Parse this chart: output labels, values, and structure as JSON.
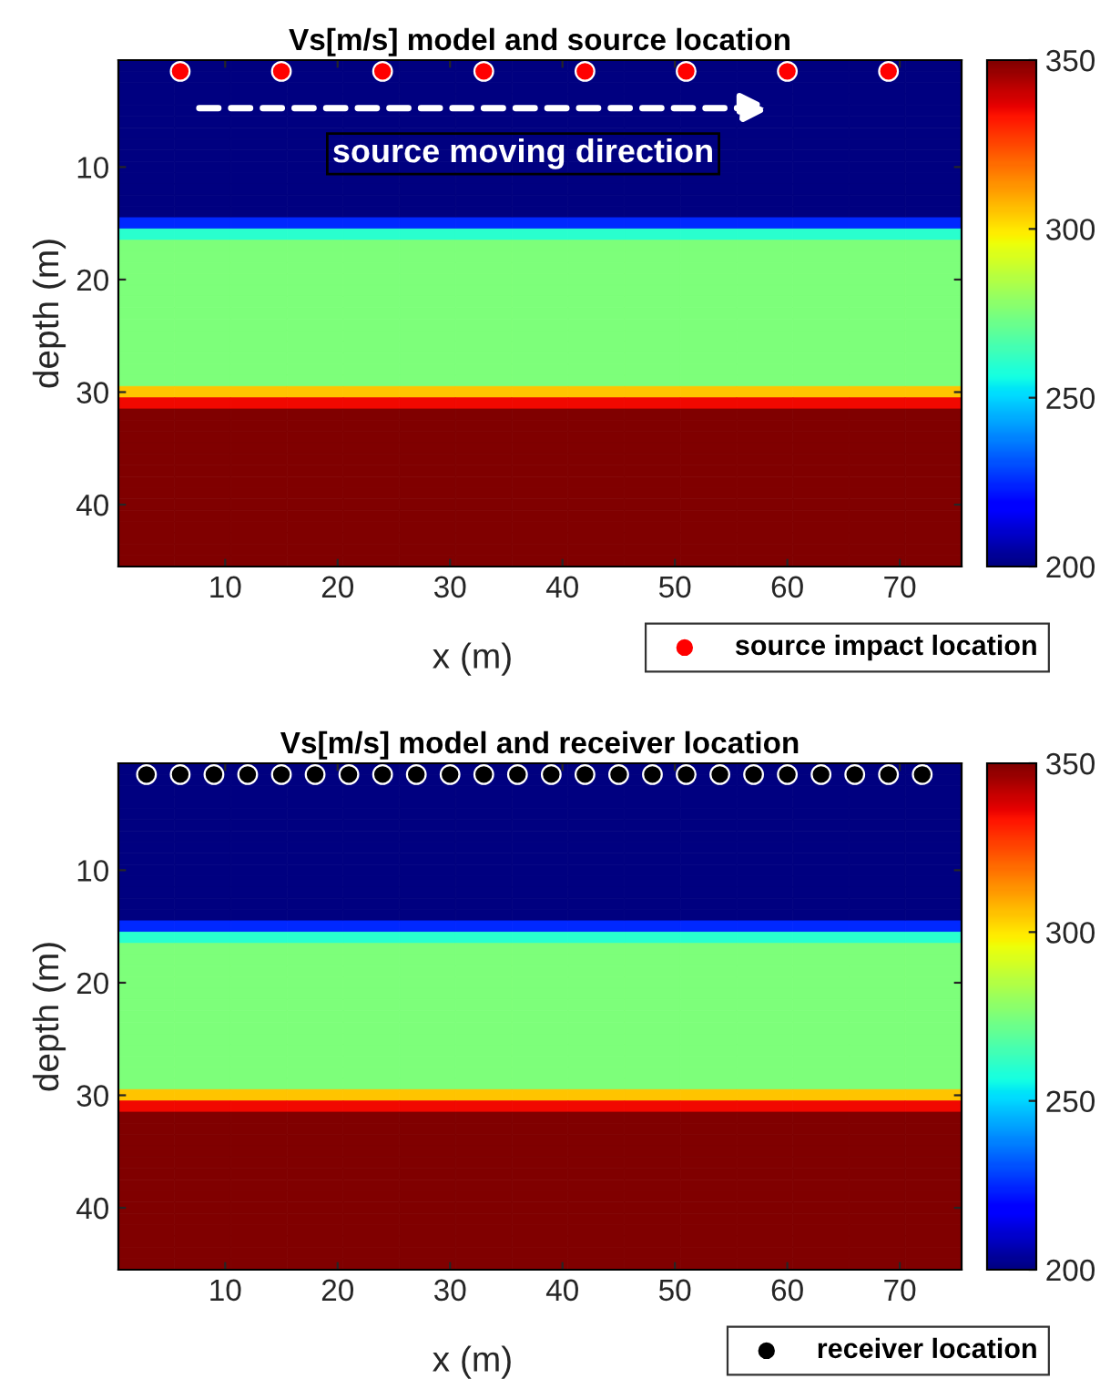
{
  "chart_data": [
    {
      "type": "heatmap",
      "title": "Vs[m/s] model and source location",
      "xlabel": "x (m)",
      "ylabel": "depth (m)",
      "xlim": [
        0.5,
        75.5
      ],
      "ylim": [
        45.5,
        0.5
      ],
      "xticks": [
        10,
        20,
        30,
        40,
        50,
        60,
        70
      ],
      "yticks": [
        10,
        20,
        30,
        40
      ],
      "clim": [
        200,
        350
      ],
      "cticks": [
        200,
        250,
        300,
        350
      ],
      "grid": false,
      "legend": "bottom right",
      "marker": "circle",
      "annotations": [
        "source moving direction"
      ],
      "cells": [
        [
          200,
          200,
          200,
          200,
          200,
          200,
          200,
          200,
          200,
          200,
          200,
          200,
          200,
          200,
          200
        ],
        [
          200,
          200,
          200,
          200,
          200,
          200,
          200,
          200,
          200,
          200,
          200,
          200,
          200,
          200,
          200
        ],
        [
          200,
          200,
          200,
          200,
          200,
          200,
          200,
          200,
          200,
          200,
          200,
          200,
          200,
          200,
          200
        ],
        [
          200,
          200,
          200,
          200,
          200,
          200,
          200,
          200,
          200,
          200,
          200,
          200,
          200,
          200,
          200
        ],
        [
          200,
          200,
          200,
          200,
          200,
          200,
          200,
          200,
          200,
          200,
          200,
          200,
          200,
          200,
          200
        ],
        [
          200,
          200,
          200,
          200,
          200,
          200,
          200,
          200,
          200,
          200,
          200,
          200,
          200,
          200,
          200
        ],
        [
          200,
          200,
          200,
          200,
          200,
          200,
          200,
          200,
          200,
          200,
          200,
          200,
          200,
          200,
          200
        ],
        [
          200,
          200,
          200,
          200,
          200,
          200,
          200,
          200,
          200,
          200,
          200,
          200,
          200,
          200,
          200
        ],
        [
          200,
          200,
          200,
          200,
          200,
          200,
          200,
          200,
          200,
          200,
          200,
          200,
          200,
          200,
          200
        ],
        [
          200,
          200,
          200,
          200,
          200,
          200,
          200,
          200,
          200,
          200,
          200,
          200,
          200,
          200,
          200
        ],
        [
          200,
          200,
          200,
          200,
          200,
          200,
          200,
          200,
          200,
          200,
          200,
          200,
          200,
          200,
          200
        ],
        [
          200,
          200,
          200,
          200,
          200,
          200,
          200,
          200,
          200,
          200,
          200,
          200,
          200,
          200,
          200
        ],
        [
          200,
          200,
          200,
          200,
          200,
          200,
          200,
          200,
          200,
          200,
          200,
          200,
          200,
          200,
          200
        ],
        [
          200,
          200,
          200,
          200,
          200,
          200,
          200,
          200,
          200,
          200,
          200,
          200,
          200,
          200,
          200
        ],
        [
          225,
          225,
          225,
          225,
          225,
          225,
          225,
          225,
          225,
          225,
          225,
          225,
          225,
          225,
          225
        ],
        [
          260,
          260,
          260,
          260,
          260,
          260,
          260,
          260,
          260,
          260,
          260,
          260,
          260,
          260,
          260
        ],
        [
          275,
          275,
          275,
          275,
          275,
          275,
          275,
          275,
          275,
          275,
          275,
          275,
          275,
          275,
          275
        ],
        [
          275,
          275,
          275,
          275,
          275,
          275,
          275,
          275,
          275,
          275,
          275,
          275,
          275,
          275,
          275
        ],
        [
          275,
          275,
          275,
          275,
          275,
          275,
          275,
          275,
          275,
          275,
          275,
          275,
          275,
          275,
          275
        ],
        [
          275,
          275,
          275,
          275,
          275,
          275,
          275,
          275,
          275,
          275,
          275,
          275,
          275,
          275,
          275
        ],
        [
          275,
          275,
          275,
          275,
          275,
          275,
          275,
          275,
          275,
          275,
          275,
          275,
          275,
          275,
          275
        ],
        [
          275,
          275,
          275,
          275,
          275,
          275,
          275,
          275,
          275,
          275,
          275,
          275,
          275,
          275,
          275
        ],
        [
          275,
          275,
          275,
          275,
          275,
          275,
          275,
          275,
          275,
          275,
          275,
          275,
          275,
          275,
          275
        ],
        [
          275,
          275,
          275,
          275,
          275,
          275,
          275,
          275,
          275,
          275,
          275,
          275,
          275,
          275,
          275
        ],
        [
          275,
          275,
          275,
          275,
          275,
          275,
          275,
          275,
          275,
          275,
          275,
          275,
          275,
          275,
          275
        ],
        [
          275,
          275,
          275,
          275,
          275,
          275,
          275,
          275,
          275,
          275,
          275,
          275,
          275,
          275,
          275
        ],
        [
          275,
          275,
          275,
          275,
          275,
          275,
          275,
          275,
          275,
          275,
          275,
          275,
          275,
          275,
          275
        ],
        [
          275,
          275,
          275,
          275,
          275,
          275,
          275,
          275,
          275,
          275,
          275,
          275,
          275,
          275,
          275
        ],
        [
          275,
          275,
          275,
          275,
          275,
          275,
          275,
          275,
          275,
          275,
          275,
          275,
          275,
          275,
          275
        ],
        [
          305,
          305,
          305,
          305,
          305,
          305,
          305,
          305,
          305,
          305,
          305,
          305,
          305,
          305,
          305
        ],
        [
          335,
          335,
          335,
          335,
          335,
          335,
          335,
          335,
          335,
          335,
          335,
          335,
          335,
          335,
          335
        ],
        [
          350,
          350,
          350,
          350,
          350,
          350,
          350,
          350,
          350,
          350,
          350,
          350,
          350,
          350,
          350
        ],
        [
          350,
          350,
          350,
          350,
          350,
          350,
          350,
          350,
          350,
          350,
          350,
          350,
          350,
          350,
          350
        ],
        [
          350,
          350,
          350,
          350,
          350,
          350,
          350,
          350,
          350,
          350,
          350,
          350,
          350,
          350,
          350
        ],
        [
          350,
          350,
          350,
          350,
          350,
          350,
          350,
          350,
          350,
          350,
          350,
          350,
          350,
          350,
          350
        ],
        [
          350,
          350,
          350,
          350,
          350,
          350,
          350,
          350,
          350,
          350,
          350,
          350,
          350,
          350,
          350
        ],
        [
          350,
          350,
          350,
          350,
          350,
          350,
          350,
          350,
          350,
          350,
          350,
          350,
          350,
          350,
          350
        ],
        [
          350,
          350,
          350,
          350,
          350,
          350,
          350,
          350,
          350,
          350,
          350,
          350,
          350,
          350,
          350
        ],
        [
          350,
          350,
          350,
          350,
          350,
          350,
          350,
          350,
          350,
          350,
          350,
          350,
          350,
          350,
          350
        ],
        [
          350,
          350,
          350,
          350,
          350,
          350,
          350,
          350,
          350,
          350,
          350,
          350,
          350,
          350,
          350
        ],
        [
          350,
          350,
          350,
          350,
          350,
          350,
          350,
          350,
          350,
          350,
          350,
          350,
          350,
          350,
          350
        ],
        [
          350,
          350,
          350,
          350,
          350,
          350,
          350,
          350,
          350,
          350,
          350,
          350,
          350,
          350,
          350
        ],
        [
          350,
          350,
          350,
          350,
          350,
          350,
          350,
          350,
          350,
          350,
          350,
          350,
          350,
          350,
          350
        ],
        [
          350,
          350,
          350,
          350,
          350,
          350,
          350,
          350,
          350,
          350,
          350,
          350,
          350,
          350,
          350
        ],
        [
          350,
          350,
          350,
          350,
          350,
          350,
          350,
          350,
          350,
          350,
          350,
          350,
          350,
          350,
          350
        ]
      ],
      "series": [
        {
          "type": "scatter",
          "name": "source impact location",
          "color": "#ff0000",
          "x": [
            6,
            15,
            24,
            33,
            42,
            51,
            60,
            69
          ],
          "values": [
            1.5,
            1.5,
            1.5,
            1.5,
            1.5,
            1.5,
            1.5,
            1.5
          ]
        }
      ]
    },
    {
      "type": "heatmap",
      "title": "Vs[m/s] model and receiver location",
      "xlabel": "x (m)",
      "ylabel": "depth (m)",
      "xlim": [
        0.5,
        75.5
      ],
      "ylim": [
        45.5,
        0.5
      ],
      "xticks": [
        10,
        20,
        30,
        40,
        50,
        60,
        70
      ],
      "yticks": [
        10,
        20,
        30,
        40
      ],
      "clim": [
        200,
        350
      ],
      "cticks": [
        200,
        250,
        300,
        350
      ],
      "grid": false,
      "legend": "bottom right",
      "marker": "circle",
      "cells": [
        [
          200,
          200,
          200,
          200,
          200,
          200,
          200,
          200,
          200,
          200,
          200,
          200,
          200,
          200,
          200
        ],
        [
          200,
          200,
          200,
          200,
          200,
          200,
          200,
          200,
          200,
          200,
          200,
          200,
          200,
          200,
          200
        ],
        [
          200,
          200,
          200,
          200,
          200,
          200,
          200,
          200,
          200,
          200,
          200,
          200,
          200,
          200,
          200
        ],
        [
          200,
          200,
          200,
          200,
          200,
          200,
          200,
          200,
          200,
          200,
          200,
          200,
          200,
          200,
          200
        ],
        [
          200,
          200,
          200,
          200,
          200,
          200,
          200,
          200,
          200,
          200,
          200,
          200,
          200,
          200,
          200
        ],
        [
          200,
          200,
          200,
          200,
          200,
          200,
          200,
          200,
          200,
          200,
          200,
          200,
          200,
          200,
          200
        ],
        [
          200,
          200,
          200,
          200,
          200,
          200,
          200,
          200,
          200,
          200,
          200,
          200,
          200,
          200,
          200
        ],
        [
          200,
          200,
          200,
          200,
          200,
          200,
          200,
          200,
          200,
          200,
          200,
          200,
          200,
          200,
          200
        ],
        [
          200,
          200,
          200,
          200,
          200,
          200,
          200,
          200,
          200,
          200,
          200,
          200,
          200,
          200,
          200
        ],
        [
          200,
          200,
          200,
          200,
          200,
          200,
          200,
          200,
          200,
          200,
          200,
          200,
          200,
          200,
          200
        ],
        [
          200,
          200,
          200,
          200,
          200,
          200,
          200,
          200,
          200,
          200,
          200,
          200,
          200,
          200,
          200
        ],
        [
          200,
          200,
          200,
          200,
          200,
          200,
          200,
          200,
          200,
          200,
          200,
          200,
          200,
          200,
          200
        ],
        [
          200,
          200,
          200,
          200,
          200,
          200,
          200,
          200,
          200,
          200,
          200,
          200,
          200,
          200,
          200
        ],
        [
          200,
          200,
          200,
          200,
          200,
          200,
          200,
          200,
          200,
          200,
          200,
          200,
          200,
          200,
          200
        ],
        [
          225,
          225,
          225,
          225,
          225,
          225,
          225,
          225,
          225,
          225,
          225,
          225,
          225,
          225,
          225
        ],
        [
          260,
          260,
          260,
          260,
          260,
          260,
          260,
          260,
          260,
          260,
          260,
          260,
          260,
          260,
          260
        ],
        [
          275,
          275,
          275,
          275,
          275,
          275,
          275,
          275,
          275,
          275,
          275,
          275,
          275,
          275,
          275
        ],
        [
          275,
          275,
          275,
          275,
          275,
          275,
          275,
          275,
          275,
          275,
          275,
          275,
          275,
          275,
          275
        ],
        [
          275,
          275,
          275,
          275,
          275,
          275,
          275,
          275,
          275,
          275,
          275,
          275,
          275,
          275,
          275
        ],
        [
          275,
          275,
          275,
          275,
          275,
          275,
          275,
          275,
          275,
          275,
          275,
          275,
          275,
          275,
          275
        ],
        [
          275,
          275,
          275,
          275,
          275,
          275,
          275,
          275,
          275,
          275,
          275,
          275,
          275,
          275,
          275
        ],
        [
          275,
          275,
          275,
          275,
          275,
          275,
          275,
          275,
          275,
          275,
          275,
          275,
          275,
          275,
          275
        ],
        [
          275,
          275,
          275,
          275,
          275,
          275,
          275,
          275,
          275,
          275,
          275,
          275,
          275,
          275,
          275
        ],
        [
          275,
          275,
          275,
          275,
          275,
          275,
          275,
          275,
          275,
          275,
          275,
          275,
          275,
          275,
          275
        ],
        [
          275,
          275,
          275,
          275,
          275,
          275,
          275,
          275,
          275,
          275,
          275,
          275,
          275,
          275,
          275
        ],
        [
          275,
          275,
          275,
          275,
          275,
          275,
          275,
          275,
          275,
          275,
          275,
          275,
          275,
          275,
          275
        ],
        [
          275,
          275,
          275,
          275,
          275,
          275,
          275,
          275,
          275,
          275,
          275,
          275,
          275,
          275,
          275
        ],
        [
          275,
          275,
          275,
          275,
          275,
          275,
          275,
          275,
          275,
          275,
          275,
          275,
          275,
          275,
          275
        ],
        [
          275,
          275,
          275,
          275,
          275,
          275,
          275,
          275,
          275,
          275,
          275,
          275,
          275,
          275,
          275
        ],
        [
          305,
          305,
          305,
          305,
          305,
          305,
          305,
          305,
          305,
          305,
          305,
          305,
          305,
          305,
          305
        ],
        [
          335,
          335,
          335,
          335,
          335,
          335,
          335,
          335,
          335,
          335,
          335,
          335,
          335,
          335,
          335
        ],
        [
          350,
          350,
          350,
          350,
          350,
          350,
          350,
          350,
          350,
          350,
          350,
          350,
          350,
          350,
          350
        ],
        [
          350,
          350,
          350,
          350,
          350,
          350,
          350,
          350,
          350,
          350,
          350,
          350,
          350,
          350,
          350
        ],
        [
          350,
          350,
          350,
          350,
          350,
          350,
          350,
          350,
          350,
          350,
          350,
          350,
          350,
          350,
          350
        ],
        [
          350,
          350,
          350,
          350,
          350,
          350,
          350,
          350,
          350,
          350,
          350,
          350,
          350,
          350,
          350
        ],
        [
          350,
          350,
          350,
          350,
          350,
          350,
          350,
          350,
          350,
          350,
          350,
          350,
          350,
          350,
          350
        ],
        [
          350,
          350,
          350,
          350,
          350,
          350,
          350,
          350,
          350,
          350,
          350,
          350,
          350,
          350,
          350
        ],
        [
          350,
          350,
          350,
          350,
          350,
          350,
          350,
          350,
          350,
          350,
          350,
          350,
          350,
          350,
          350
        ],
        [
          350,
          350,
          350,
          350,
          350,
          350,
          350,
          350,
          350,
          350,
          350,
          350,
          350,
          350,
          350
        ],
        [
          350,
          350,
          350,
          350,
          350,
          350,
          350,
          350,
          350,
          350,
          350,
          350,
          350,
          350,
          350
        ],
        [
          350,
          350,
          350,
          350,
          350,
          350,
          350,
          350,
          350,
          350,
          350,
          350,
          350,
          350,
          350
        ],
        [
          350,
          350,
          350,
          350,
          350,
          350,
          350,
          350,
          350,
          350,
          350,
          350,
          350,
          350,
          350
        ],
        [
          350,
          350,
          350,
          350,
          350,
          350,
          350,
          350,
          350,
          350,
          350,
          350,
          350,
          350,
          350
        ],
        [
          350,
          350,
          350,
          350,
          350,
          350,
          350,
          350,
          350,
          350,
          350,
          350,
          350,
          350,
          350
        ],
        [
          350,
          350,
          350,
          350,
          350,
          350,
          350,
          350,
          350,
          350,
          350,
          350,
          350,
          350,
          350
        ]
      ],
      "series": [
        {
          "type": "scatter",
          "name": "receiver location",
          "color": "#000000",
          "x": [
            3,
            6,
            9,
            12,
            15,
            18,
            21,
            24,
            27,
            30,
            33,
            36,
            39,
            42,
            45,
            48,
            51,
            54,
            57,
            60,
            63,
            66,
            69,
            72
          ],
          "values": [
            1.5,
            1.5,
            1.5,
            1.5,
            1.5,
            1.5,
            1.5,
            1.5,
            1.5,
            1.5,
            1.5,
            1.5,
            1.5,
            1.5,
            1.5,
            1.5,
            1.5,
            1.5,
            1.5,
            1.5,
            1.5,
            1.5,
            1.5,
            1.5
          ]
        }
      ]
    }
  ]
}
